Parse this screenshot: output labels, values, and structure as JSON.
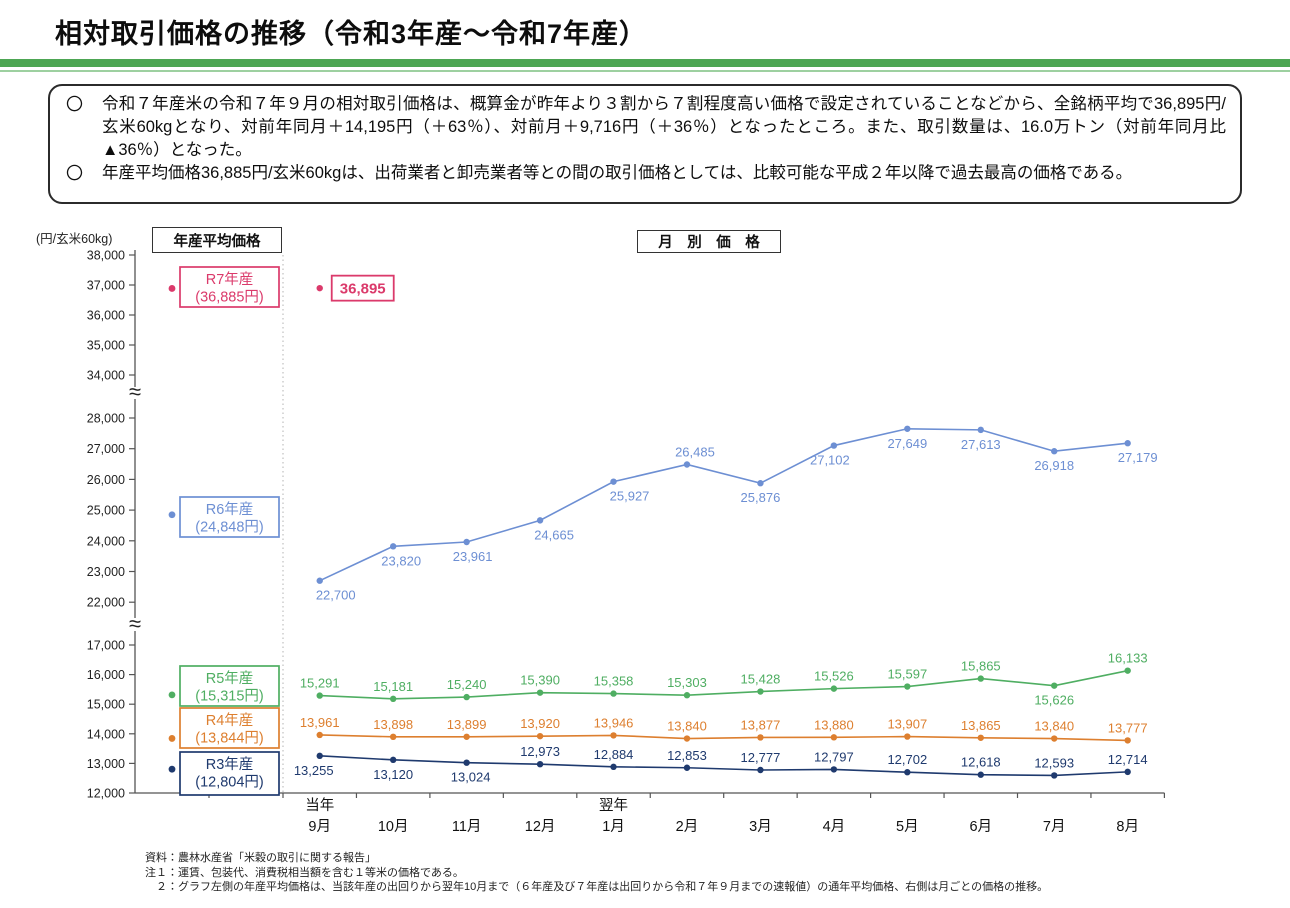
{
  "page": {
    "title": "相対取引価格の推移（令和3年産～令和7年産）"
  },
  "summary_box": {
    "bullet_marker": "〇",
    "bullets": [
      "令和７年産米の令和７年９月の相対取引価格は、概算金が昨年より３割から７割程度高い価格で設定されていることなどから、全銘柄平均で36,895円/玄米60kgとなり、対前年同月＋14,195円（＋63％）、対前月＋9,716円（＋36％）となったところ。また、取引数量は、16.0万トン（対前年同月比▲36％）となった。",
      "年産平均価格36,885円/玄米60kgは、出荷業者と卸売業者等との間の取引価格としては、比較可能な平成２年以降で過去最高の価格である。"
    ]
  },
  "chart_data": {
    "type": "line",
    "unit_label": "(円/玄米60kg)",
    "left_section_title": "年産平均価格",
    "right_section_title": "月　別　価　格",
    "x_categories": [
      "9月",
      "10月",
      "11月",
      "12月",
      "1月",
      "2月",
      "3月",
      "4月",
      "5月",
      "6月",
      "7月",
      "8月"
    ],
    "x_year_markers": [
      {
        "label": "当年",
        "month_index": 0
      },
      {
        "label": "翌年",
        "month_index": 4
      }
    ],
    "y_axis": {
      "break_symbol": "≈",
      "segments": [
        {
          "ticks": [
            38000,
            37000,
            36000,
            35000,
            34000
          ]
        },
        {
          "ticks": [
            28000,
            27000,
            26000,
            25000,
            24000,
            23000,
            22000
          ]
        },
        {
          "ticks": [
            17000,
            16000,
            15000,
            14000,
            13000,
            12000
          ]
        }
      ]
    },
    "series": [
      {
        "name": "R7年産",
        "color": "#db3a6b",
        "average_value": 36885,
        "average_display": "(36,885円)",
        "monthly": [
          36895
        ],
        "monthly_label_boxed": true,
        "label_sides": [
          "right"
        ],
        "label_dx": [
          0
        ]
      },
      {
        "name": "R6年産",
        "color": "#6d8fd3",
        "average_value": 24848,
        "average_display": "(24,848円)",
        "monthly": [
          22700,
          23820,
          23961,
          24665,
          25927,
          26485,
          25876,
          27102,
          27649,
          27613,
          26918,
          27179
        ],
        "monthly_label_boxed": false,
        "label_sides": [
          "below",
          "below",
          "below",
          "below",
          "below",
          "above",
          "below",
          "below",
          "below",
          "below",
          "below",
          "below"
        ],
        "label_dx": [
          16,
          8,
          6,
          14,
          16,
          8,
          0,
          -4,
          0,
          0,
          0,
          10
        ]
      },
      {
        "name": "R5年産",
        "color": "#4fae62",
        "average_value": 15315,
        "average_display": "(15,315円)",
        "monthly": [
          15291,
          15181,
          15240,
          15390,
          15358,
          15303,
          15428,
          15526,
          15597,
          15865,
          15626,
          16133
        ],
        "monthly_label_boxed": false,
        "label_sides": [
          "above",
          "above",
          "above",
          "above",
          "above",
          "above",
          "above",
          "above",
          "above",
          "above",
          "below",
          "above"
        ],
        "label_dx": [
          0,
          0,
          0,
          0,
          0,
          0,
          0,
          0,
          0,
          0,
          0,
          0
        ]
      },
      {
        "name": "R4年産",
        "color": "#dd7f2f",
        "average_value": 13844,
        "average_display": "(13,844円)",
        "monthly": [
          13961,
          13898,
          13899,
          13920,
          13946,
          13840,
          13877,
          13880,
          13907,
          13865,
          13840,
          13777
        ],
        "monthly_label_boxed": false,
        "label_sides": [
          "above",
          "above",
          "above",
          "above",
          "above",
          "above",
          "above",
          "above",
          "above",
          "above",
          "above",
          "above"
        ],
        "label_dx": [
          0,
          0,
          0,
          0,
          0,
          0,
          0,
          0,
          0,
          0,
          0,
          0
        ]
      },
      {
        "name": "R3年産",
        "color": "#1f3a6e",
        "average_value": 12804,
        "average_display": "(12,804円)",
        "monthly": [
          13255,
          13120,
          13024,
          12973,
          12884,
          12853,
          12777,
          12797,
          12702,
          12618,
          12593,
          12714
        ],
        "monthly_label_boxed": false,
        "label_sides": [
          "below",
          "below",
          "below",
          "above",
          "above",
          "above",
          "above",
          "above",
          "above",
          "above",
          "above",
          "above"
        ],
        "label_dx": [
          -6,
          0,
          4,
          0,
          0,
          0,
          0,
          0,
          0,
          0,
          0,
          0
        ]
      }
    ]
  },
  "footer": {
    "lines": [
      "資料：農林水産省「米穀の取引に関する報告」",
      "注１：運賃、包装代、消費税相当額を含む１等米の価格である。",
      "　２：グラフ左側の年産平均価格は、当該年産の出回りから翌年10月まで（６年産及び７年産は出回りから令和７年９月までの速報値）の通年平均価格、右側は月ごとの価格の推移。"
    ]
  }
}
